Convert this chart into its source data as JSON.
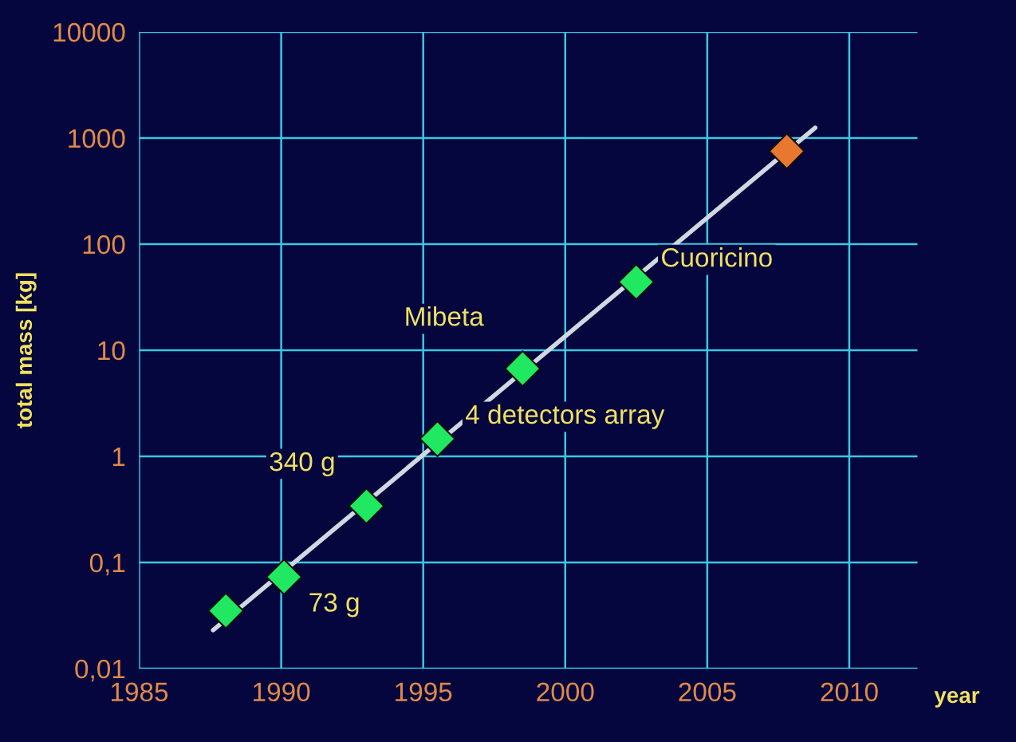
{
  "chart_data": {
    "type": "scatter",
    "xlabel": "year",
    "ylabel": "total mass [kg]",
    "log": "y",
    "grid": true,
    "legend": false,
    "marker": "diamond",
    "xlim": [
      1985,
      2012.4
    ],
    "xticks": [
      1985,
      1990,
      1995,
      2000,
      2005,
      2010
    ],
    "ylim": [
      0.01,
      10000
    ],
    "yticks": [
      {
        "value": 0.01,
        "label": "0,01"
      },
      {
        "value": 0.1,
        "label": "0,1"
      },
      1,
      10,
      100,
      1000,
      10000
    ],
    "series": [
      {
        "type": "line",
        "color": "#d0d8e0",
        "marker": "none",
        "x": [
          1987.6,
          2008.8
        ],
        "values": [
          0.023,
          1250
        ]
      },
      {
        "color": "#20e860",
        "x": [
          1988.05,
          1990.1,
          1993.0,
          1995.5,
          1998.5,
          2002.5
        ],
        "values": [
          0.035,
          0.073,
          0.34,
          1.46,
          6.7,
          44
        ]
      },
      {
        "color": "#e87830",
        "x": [
          2007.8
        ],
        "values": [
          750
        ]
      }
    ],
    "annotations": [
      {
        "text": "73 g",
        "x": 1990.1,
        "y": 0.073
      },
      {
        "text": "340 g",
        "x": 1993.0,
        "y": 0.34
      },
      {
        "text": "4 detectors array",
        "x": 1995.5,
        "y": 1.46
      },
      {
        "text": "Mibeta",
        "x": 1998.5,
        "y": 6.7
      },
      {
        "text": "Cuoricino",
        "x": 2002.5,
        "y": 44
      }
    ]
  }
}
